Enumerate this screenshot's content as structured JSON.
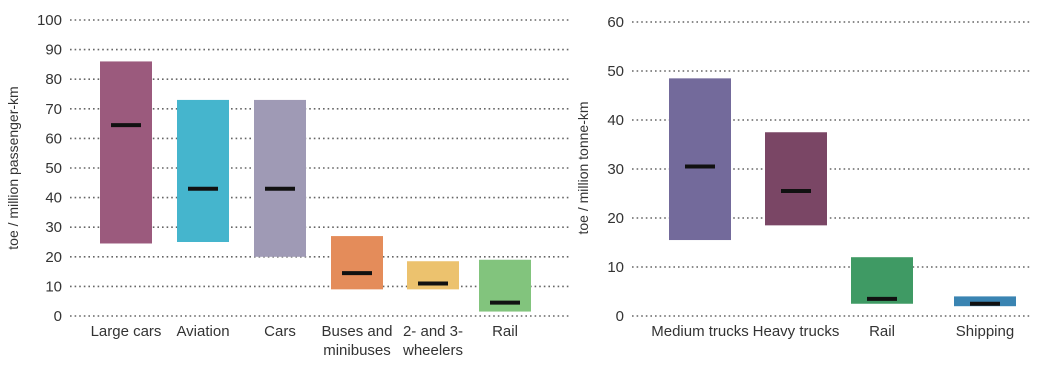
{
  "chart_data": [
    {
      "type": "bar",
      "subtype": "range-with-marker",
      "title": "",
      "xlabel": "",
      "ylabel": "toe / million passenger-km",
      "ylim": [
        0,
        100
      ],
      "yticks": [
        0,
        10,
        20,
        30,
        40,
        50,
        60,
        70,
        80,
        90,
        100
      ],
      "grid": true,
      "legend": "none",
      "categories": [
        {
          "label": [
            "Large cars"
          ],
          "low": 24.5,
          "high": 86,
          "mid": 64.5,
          "color": "#9b5a7d"
        },
        {
          "label": [
            "Aviation"
          ],
          "low": 25,
          "high": 73,
          "mid": 43,
          "color": "#45b5cd"
        },
        {
          "label": [
            "Cars"
          ],
          "low": 20,
          "high": 73,
          "mid": 43,
          "color": "#9f9ab5"
        },
        {
          "label": [
            "Buses and",
            "minibuses"
          ],
          "low": 9,
          "high": 27,
          "mid": 14.5,
          "color": "#e48c5a"
        },
        {
          "label": [
            "2- and 3-",
            "wheelers"
          ],
          "low": 9,
          "high": 18.5,
          "mid": 11,
          "color": "#ecc26e"
        },
        {
          "label": [
            "Rail"
          ],
          "low": 1.5,
          "high": 19,
          "mid": 4.5,
          "color": "#82c47d"
        }
      ]
    },
    {
      "type": "bar",
      "subtype": "range-with-marker",
      "title": "",
      "xlabel": "",
      "ylabel": "toe / million tonne-km",
      "ylim": [
        0,
        60
      ],
      "yticks": [
        0,
        10,
        20,
        30,
        40,
        50,
        60
      ],
      "grid": true,
      "legend": "none",
      "categories": [
        {
          "label": [
            "Medium trucks"
          ],
          "low": 15.5,
          "high": 48.5,
          "mid": 30.5,
          "color": "#736a9b"
        },
        {
          "label": [
            "Heavy trucks"
          ],
          "low": 18.5,
          "high": 37.5,
          "mid": 25.5,
          "color": "#7a4665"
        },
        {
          "label": [
            "Rail"
          ],
          "low": 2.5,
          "high": 12,
          "mid": 3.5,
          "color": "#3f9a64"
        },
        {
          "label": [
            "Shipping"
          ],
          "low": 2,
          "high": 4,
          "mid": 2.5,
          "color": "#3a84b2"
        }
      ]
    }
  ]
}
